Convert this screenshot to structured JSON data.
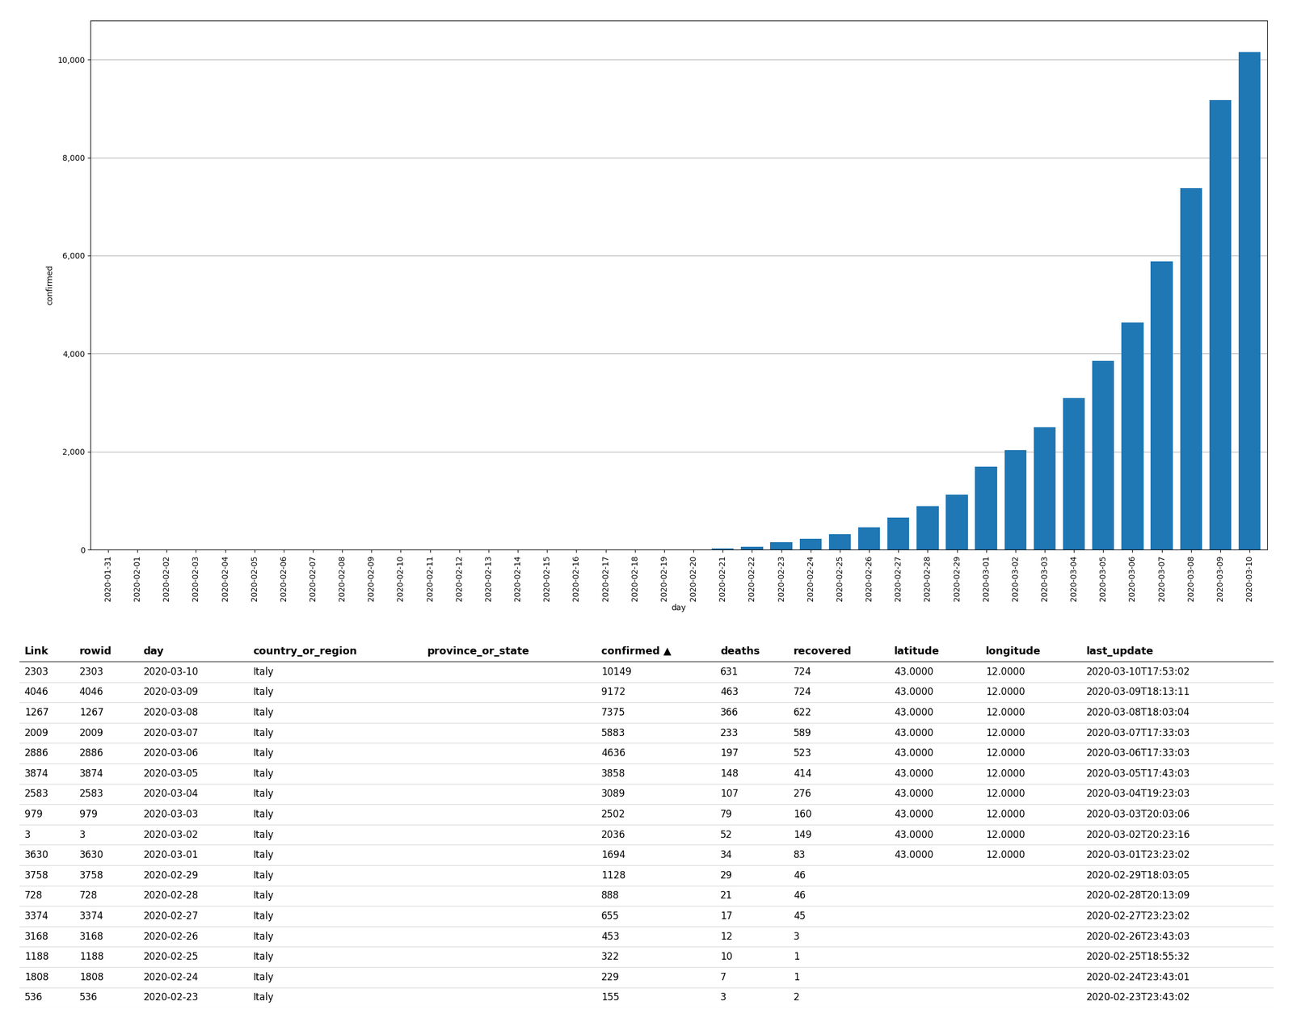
{
  "chart_data": [
    {
      "type": "bar",
      "xlabel": "day",
      "ylabel": "confirmed",
      "categories": [
        "2020-01-31",
        "2020-02-01",
        "2020-02-02",
        "2020-02-03",
        "2020-02-04",
        "2020-02-05",
        "2020-02-06",
        "2020-02-07",
        "2020-02-08",
        "2020-02-09",
        "2020-02-10",
        "2020-02-11",
        "2020-02-12",
        "2020-02-13",
        "2020-02-14",
        "2020-02-15",
        "2020-02-16",
        "2020-02-17",
        "2020-02-18",
        "2020-02-19",
        "2020-02-20",
        "2020-02-21",
        "2020-02-22",
        "2020-02-23",
        "2020-02-24",
        "2020-02-25",
        "2020-02-26",
        "2020-02-27",
        "2020-02-28",
        "2020-02-29",
        "2020-03-01",
        "2020-03-02",
        "2020-03-03",
        "2020-03-04",
        "2020-03-05",
        "2020-03-06",
        "2020-03-07",
        "2020-03-08",
        "2020-03-09",
        "2020-03-10"
      ],
      "values": [
        2,
        2,
        2,
        2,
        2,
        2,
        2,
        2,
        2,
        2,
        2,
        2,
        2,
        2,
        2,
        2,
        2,
        2,
        2,
        2,
        3,
        20,
        62,
        155,
        229,
        322,
        453,
        655,
        888,
        1128,
        1694,
        2036,
        2502,
        3089,
        3858,
        4636,
        5883,
        7375,
        9172,
        10149
      ],
      "ylim": [
        0,
        10800
      ],
      "yticks": [
        0,
        {
          "value": 2000,
          "label": "2,000"
        },
        {
          "value": 4000,
          "label": "4,000"
        },
        {
          "value": 6000,
          "label": "6,000"
        },
        {
          "value": 8000,
          "label": "8,000"
        },
        {
          "value": 10000,
          "label": "10,000"
        }
      ],
      "grid": true
    },
    {
      "type": "table",
      "columns": [
        "Link",
        "rowid",
        "day",
        "country_or_region",
        "province_or_state",
        "confirmed ▲",
        "deaths",
        "recovered",
        "latitude",
        "longitude",
        "last_update"
      ],
      "rows": [
        [
          "2303",
          "2303",
          "2020-03-10",
          "Italy",
          null,
          "10149",
          "631",
          "724",
          "43.0000",
          "12.0000",
          "2020-03-10T17:53:02"
        ],
        [
          "4046",
          "4046",
          "2020-03-09",
          "Italy",
          null,
          "9172",
          "463",
          "724",
          "43.0000",
          "12.0000",
          "2020-03-09T18:13:11"
        ],
        [
          "1267",
          "1267",
          "2020-03-08",
          "Italy",
          null,
          "7375",
          "366",
          "622",
          "43.0000",
          "12.0000",
          "2020-03-08T18:03:04"
        ],
        [
          "2009",
          "2009",
          "2020-03-07",
          "Italy",
          null,
          "5883",
          "233",
          "589",
          "43.0000",
          "12.0000",
          "2020-03-07T17:33:03"
        ],
        [
          "2886",
          "2886",
          "2020-03-06",
          "Italy",
          null,
          "4636",
          "197",
          "523",
          "43.0000",
          "12.0000",
          "2020-03-06T17:33:03"
        ],
        [
          "3874",
          "3874",
          "2020-03-05",
          "Italy",
          null,
          "3858",
          "148",
          "414",
          "43.0000",
          "12.0000",
          "2020-03-05T17:43:03"
        ],
        [
          "2583",
          "2583",
          "2020-03-04",
          "Italy",
          null,
          "3089",
          "107",
          "276",
          "43.0000",
          "12.0000",
          "2020-03-04T19:23:03"
        ],
        [
          "979",
          "979",
          "2020-03-03",
          "Italy",
          null,
          "2502",
          "79",
          "160",
          "43.0000",
          "12.0000",
          "2020-03-03T20:03:06"
        ],
        [
          "3",
          "3",
          "2020-03-02",
          "Italy",
          null,
          "2036",
          "52",
          "149",
          "43.0000",
          "12.0000",
          "2020-03-02T20:23:16"
        ],
        [
          "3630",
          "3630",
          "2020-03-01",
          "Italy",
          null,
          "1694",
          "34",
          "83",
          "43.0000",
          "12.0000",
          "2020-03-01T23:23:02"
        ],
        [
          "3758",
          "3758",
          "2020-02-29",
          "Italy",
          null,
          "1128",
          "29",
          "46",
          null,
          null,
          "2020-02-29T18:03:05"
        ],
        [
          "728",
          "728",
          "2020-02-28",
          "Italy",
          null,
          "888",
          "21",
          "46",
          null,
          null,
          "2020-02-28T20:13:09"
        ],
        [
          "3374",
          "3374",
          "2020-02-27",
          "Italy",
          null,
          "655",
          "17",
          "45",
          null,
          null,
          "2020-02-27T23:23:02"
        ],
        [
          "3168",
          "3168",
          "2020-02-26",
          "Italy",
          null,
          "453",
          "12",
          "3",
          null,
          null,
          "2020-02-26T23:43:03"
        ],
        [
          "1188",
          "1188",
          "2020-02-25",
          "Italy",
          null,
          "322",
          "10",
          "1",
          null,
          null,
          "2020-02-25T18:55:32"
        ],
        [
          "1808",
          "1808",
          "2020-02-24",
          "Italy",
          null,
          "229",
          "7",
          "1",
          null,
          null,
          "2020-02-24T23:43:01"
        ],
        [
          "536",
          "536",
          "2020-02-23",
          "Italy",
          null,
          "155",
          "3",
          "2",
          null,
          null,
          "2020-02-23T23:43:02"
        ]
      ]
    }
  ]
}
